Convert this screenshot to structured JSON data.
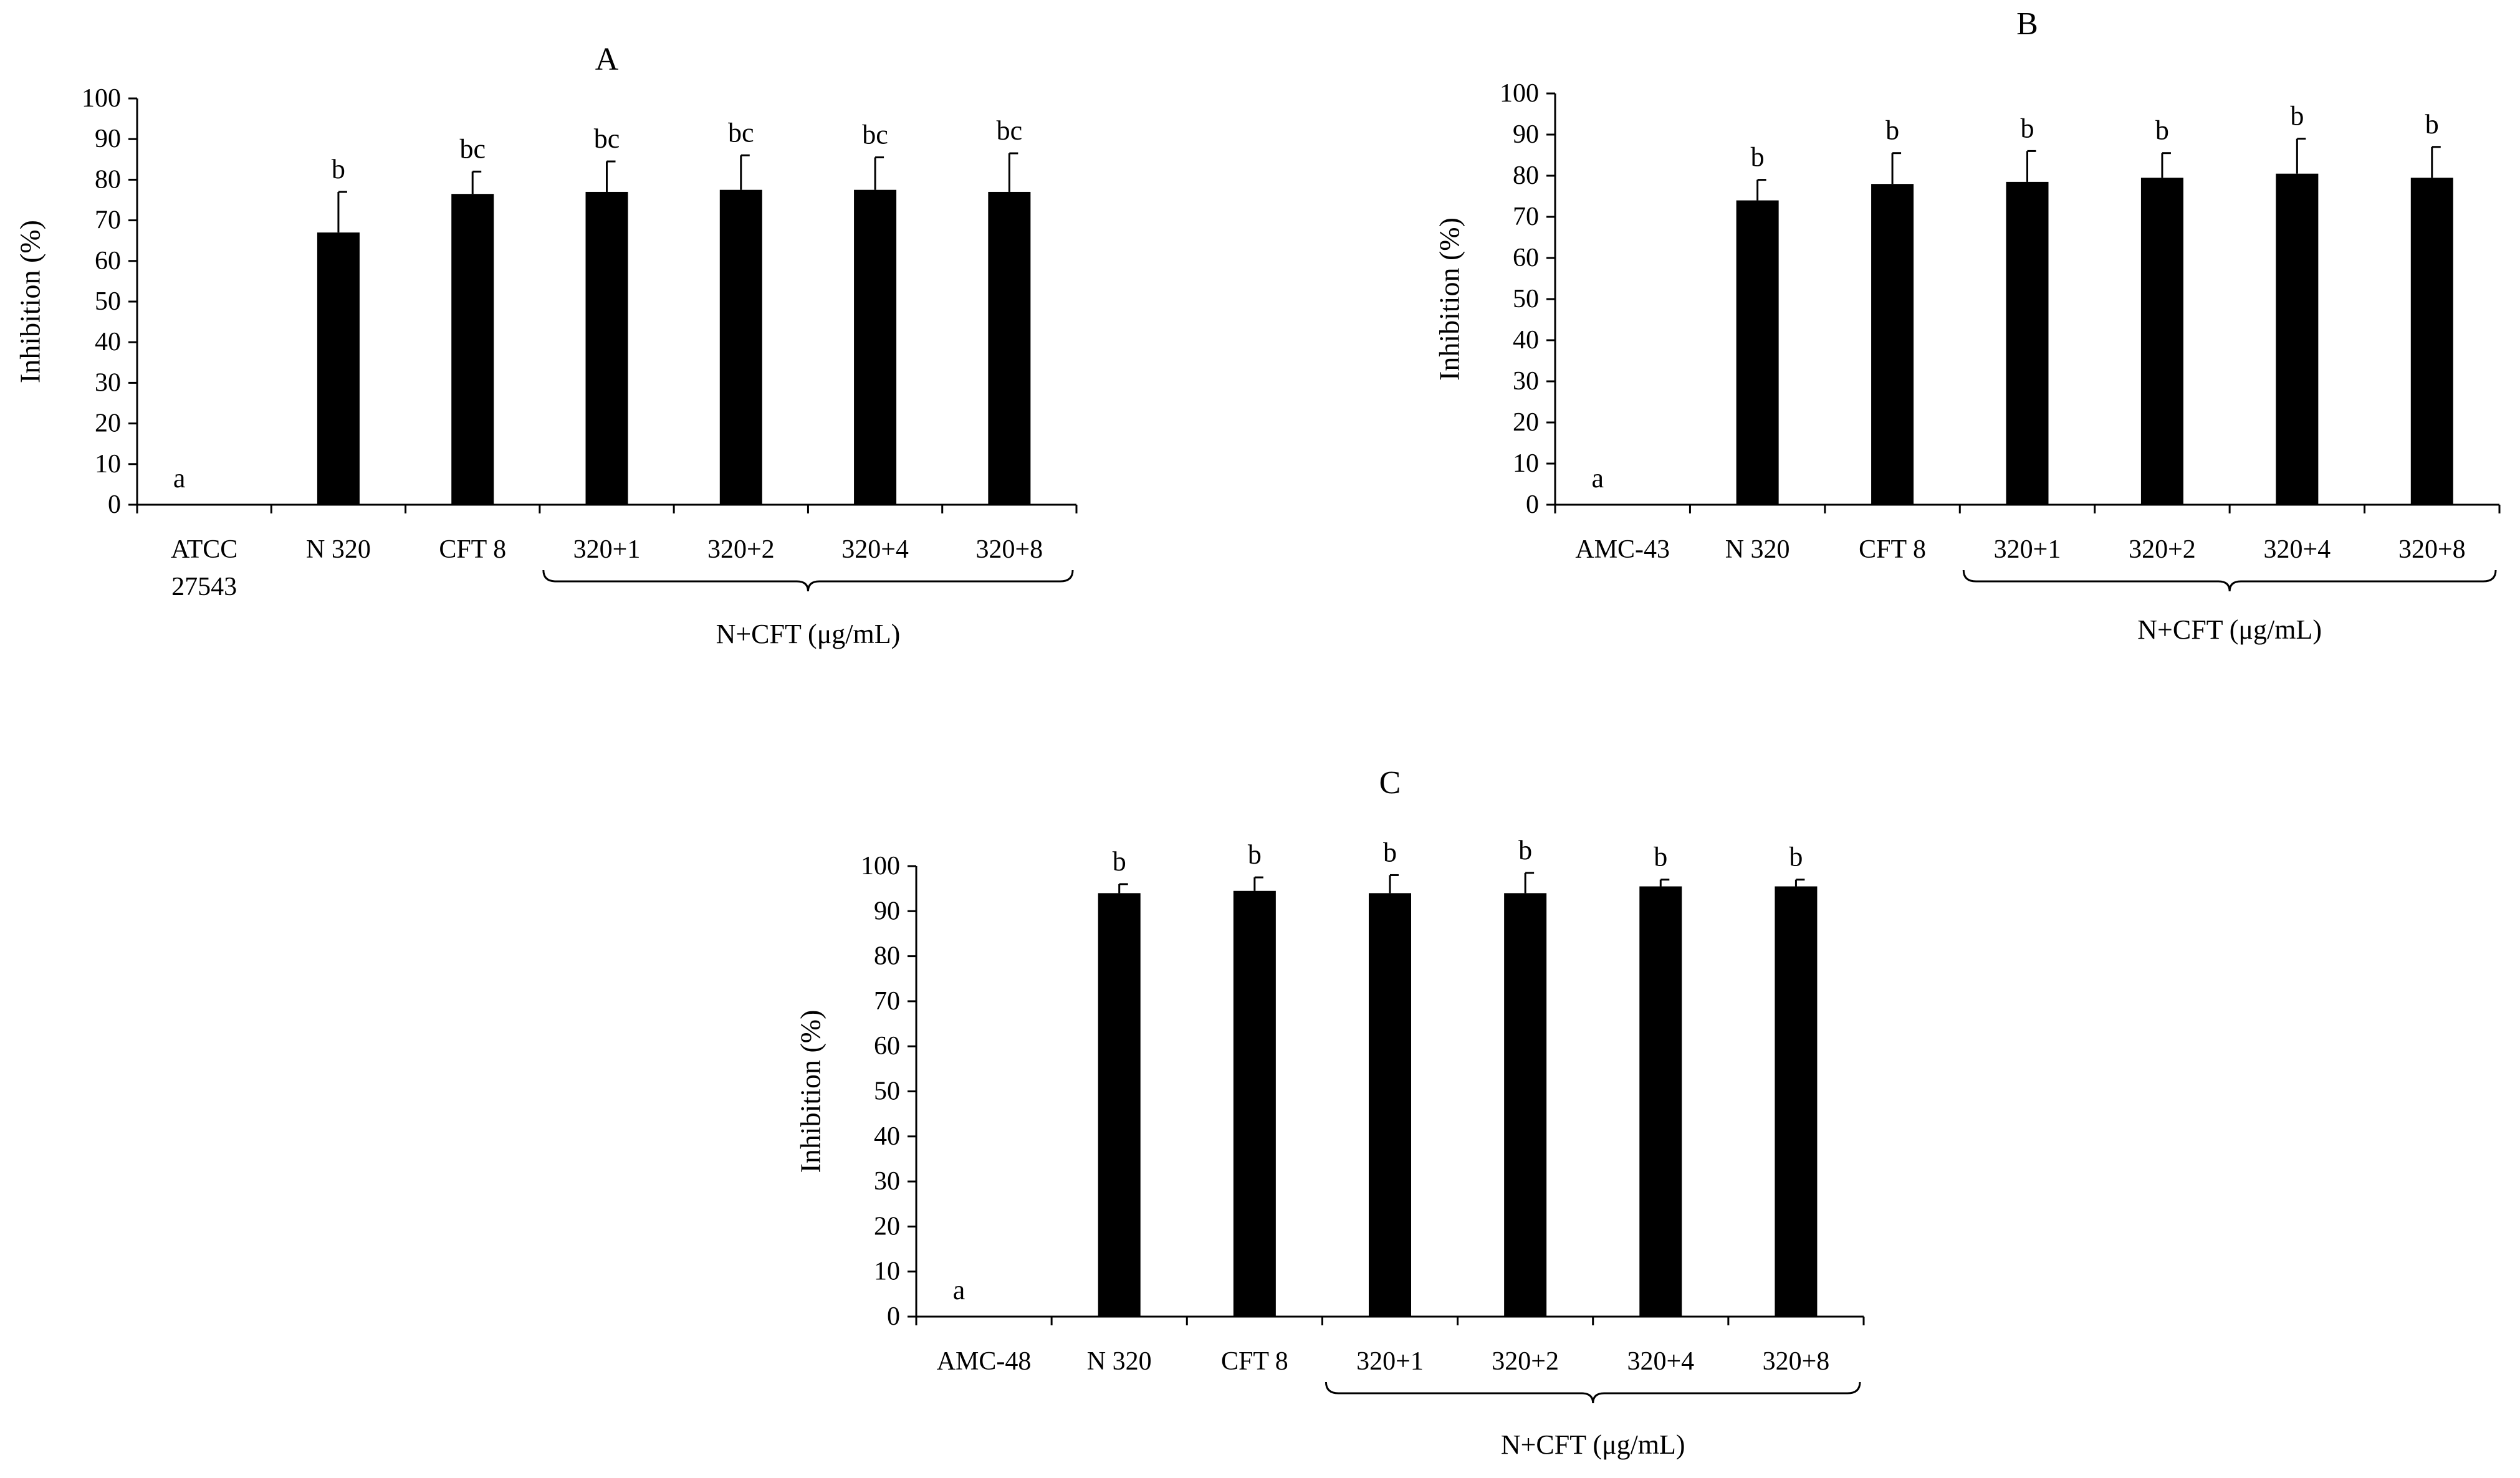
{
  "chart_data": [
    {
      "type": "bar",
      "title": "A",
      "ylabel": "Inhibition (%)",
      "ylim": [
        0,
        100
      ],
      "yticks": [
        0,
        10,
        20,
        30,
        40,
        50,
        60,
        70,
        80,
        90,
        100
      ],
      "grid": false,
      "categories": [
        [
          "ATCC",
          "27543"
        ],
        [
          "N 320"
        ],
        [
          "CFT 8"
        ],
        [
          "320+1"
        ],
        [
          "320+2"
        ],
        [
          "320+4"
        ],
        [
          "320+8"
        ]
      ],
      "values": [
        0,
        67,
        76.5,
        77,
        77.5,
        77.5,
        77
      ],
      "errors": [
        0,
        10,
        5.5,
        7.5,
        8.5,
        8,
        9.5
      ],
      "significance": [
        "a",
        "b",
        "bc",
        "bc",
        "bc",
        "bc",
        "bc"
      ],
      "group_label": "N+CFT (μg/mL)",
      "group_range": [
        3,
        6
      ],
      "bar_color": "#000000"
    },
    {
      "type": "bar",
      "title": "B",
      "ylabel": "Inhibition (%)",
      "ylim": [
        0,
        100
      ],
      "yticks": [
        0,
        10,
        20,
        30,
        40,
        50,
        60,
        70,
        80,
        90,
        100
      ],
      "grid": false,
      "categories": [
        [
          "AMC-43"
        ],
        [
          "N 320"
        ],
        [
          "CFT 8"
        ],
        [
          "320+1"
        ],
        [
          "320+2"
        ],
        [
          "320+4"
        ],
        [
          "320+8"
        ]
      ],
      "values": [
        0,
        74,
        78,
        78.5,
        79.5,
        80.5,
        79.5
      ],
      "errors": [
        0,
        5,
        7.5,
        7.5,
        6,
        8.5,
        7.5
      ],
      "significance": [
        "a",
        "b",
        "b",
        "b",
        "b",
        "b",
        "b"
      ],
      "group_label": "N+CFT (μg/mL)",
      "group_range": [
        3,
        6
      ],
      "bar_color": "#000000"
    },
    {
      "type": "bar",
      "title": "C",
      "ylabel": "Inhibition (%)",
      "ylim": [
        0,
        100
      ],
      "yticks": [
        0,
        10,
        20,
        30,
        40,
        50,
        60,
        70,
        80,
        90,
        100
      ],
      "grid": false,
      "categories": [
        [
          "AMC-48"
        ],
        [
          "N 320"
        ],
        [
          "CFT 8"
        ],
        [
          "320+1"
        ],
        [
          "320+2"
        ],
        [
          "320+4"
        ],
        [
          "320+8"
        ]
      ],
      "values": [
        0,
        94,
        94.5,
        94,
        94,
        95.5,
        95.5
      ],
      "errors": [
        0,
        2,
        3,
        4,
        4.5,
        1.5,
        1.5
      ],
      "significance": [
        "a",
        "b",
        "b",
        "b",
        "b",
        "b",
        "b"
      ],
      "group_label": "N+CFT (μg/mL)",
      "group_range": [
        3,
        6
      ],
      "bar_color": "#000000"
    }
  ]
}
